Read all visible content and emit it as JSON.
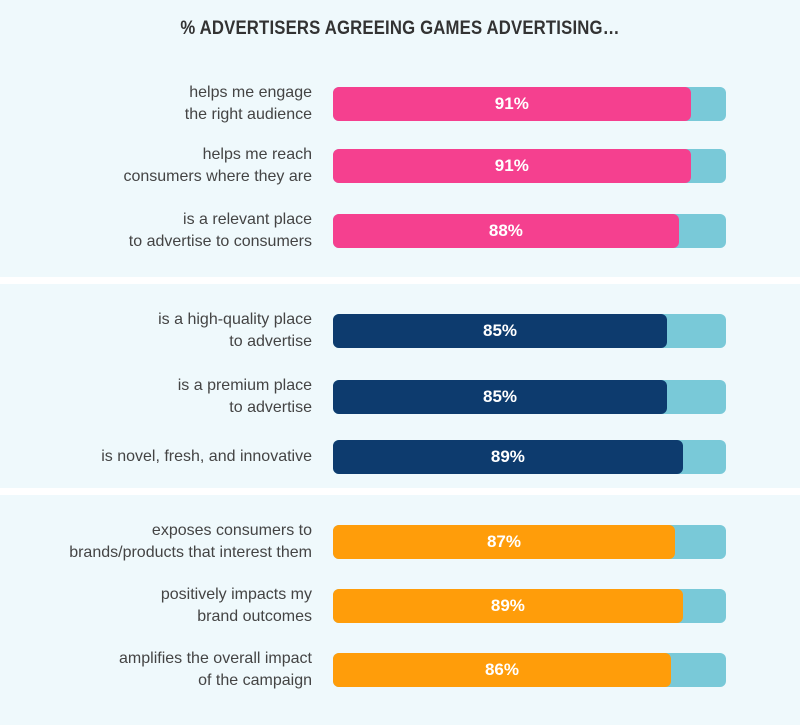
{
  "chart_data": {
    "type": "bar",
    "orientation": "horizontal",
    "title": "% ADVERTISERS AGREEING GAMES ADVERTISING…",
    "xlim": [
      0,
      100
    ],
    "groups": [
      {
        "color": "#f5408f",
        "items": [
          {
            "label": "helps me engage\nthe right audience",
            "value": 91,
            "display": "91%"
          },
          {
            "label": "helps me reach\nconsumers where they are",
            "value": 91,
            "display": "91%"
          },
          {
            "label": "is a relevant place\nto advertise to consumers",
            "value": 88,
            "display": "88%"
          }
        ]
      },
      {
        "color": "#0d3b6e",
        "items": [
          {
            "label": "is a high-quality place\nto advertise",
            "value": 85,
            "display": "85%"
          },
          {
            "label": "is a premium place\nto advertise",
            "value": 85,
            "display": "85%"
          },
          {
            "label": "is novel, fresh, and innovative",
            "value": 89,
            "display": "89%"
          }
        ]
      },
      {
        "color": "#ff9d0a",
        "items": [
          {
            "label": "exposes consumers to\nbrands/products that interest them",
            "value": 87,
            "display": "87%"
          },
          {
            "label": "positively impacts my\nbrand outcomes",
            "value": 89,
            "display": "89%"
          },
          {
            "label": "amplifies the overall impact\nof the campaign",
            "value": 86,
            "display": "86%"
          }
        ]
      }
    ],
    "track_color": "#79c9d8"
  }
}
